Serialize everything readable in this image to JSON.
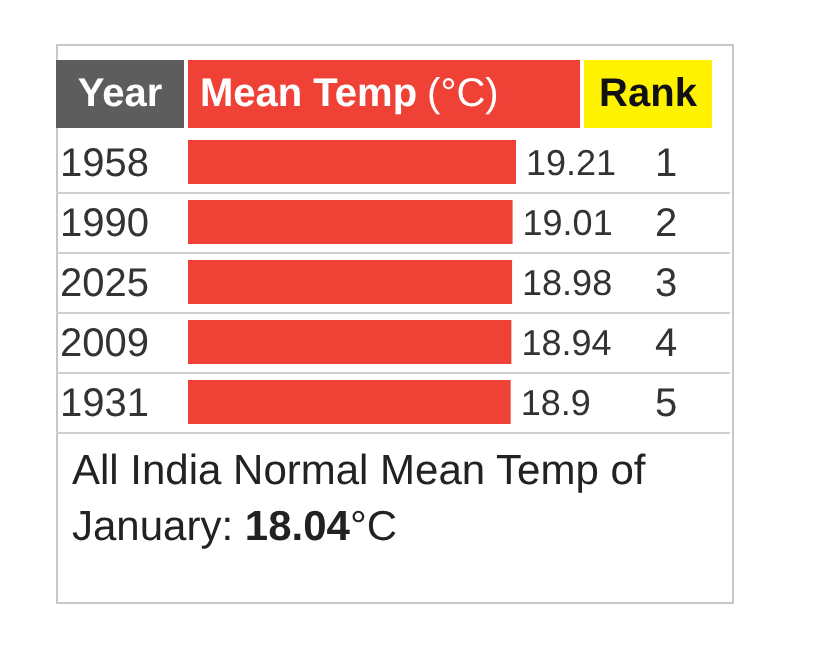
{
  "chart_data": {
    "type": "bar",
    "orientation": "horizontal",
    "ylabel": "Year",
    "xlabel": "Mean Temp (°C)",
    "categories": [
      "1958",
      "1990",
      "2025",
      "2009",
      "1931"
    ],
    "values": [
      19.21,
      19.01,
      18.98,
      18.94,
      18.9
    ],
    "color": "#ef4136",
    "tick_labels": "y",
    "data_labels": true,
    "annotations": [
      "Rank",
      "1",
      "2",
      "3",
      "4",
      "5",
      "All India Normal Mean Temp of January: 18.04°C"
    ]
  }
}
